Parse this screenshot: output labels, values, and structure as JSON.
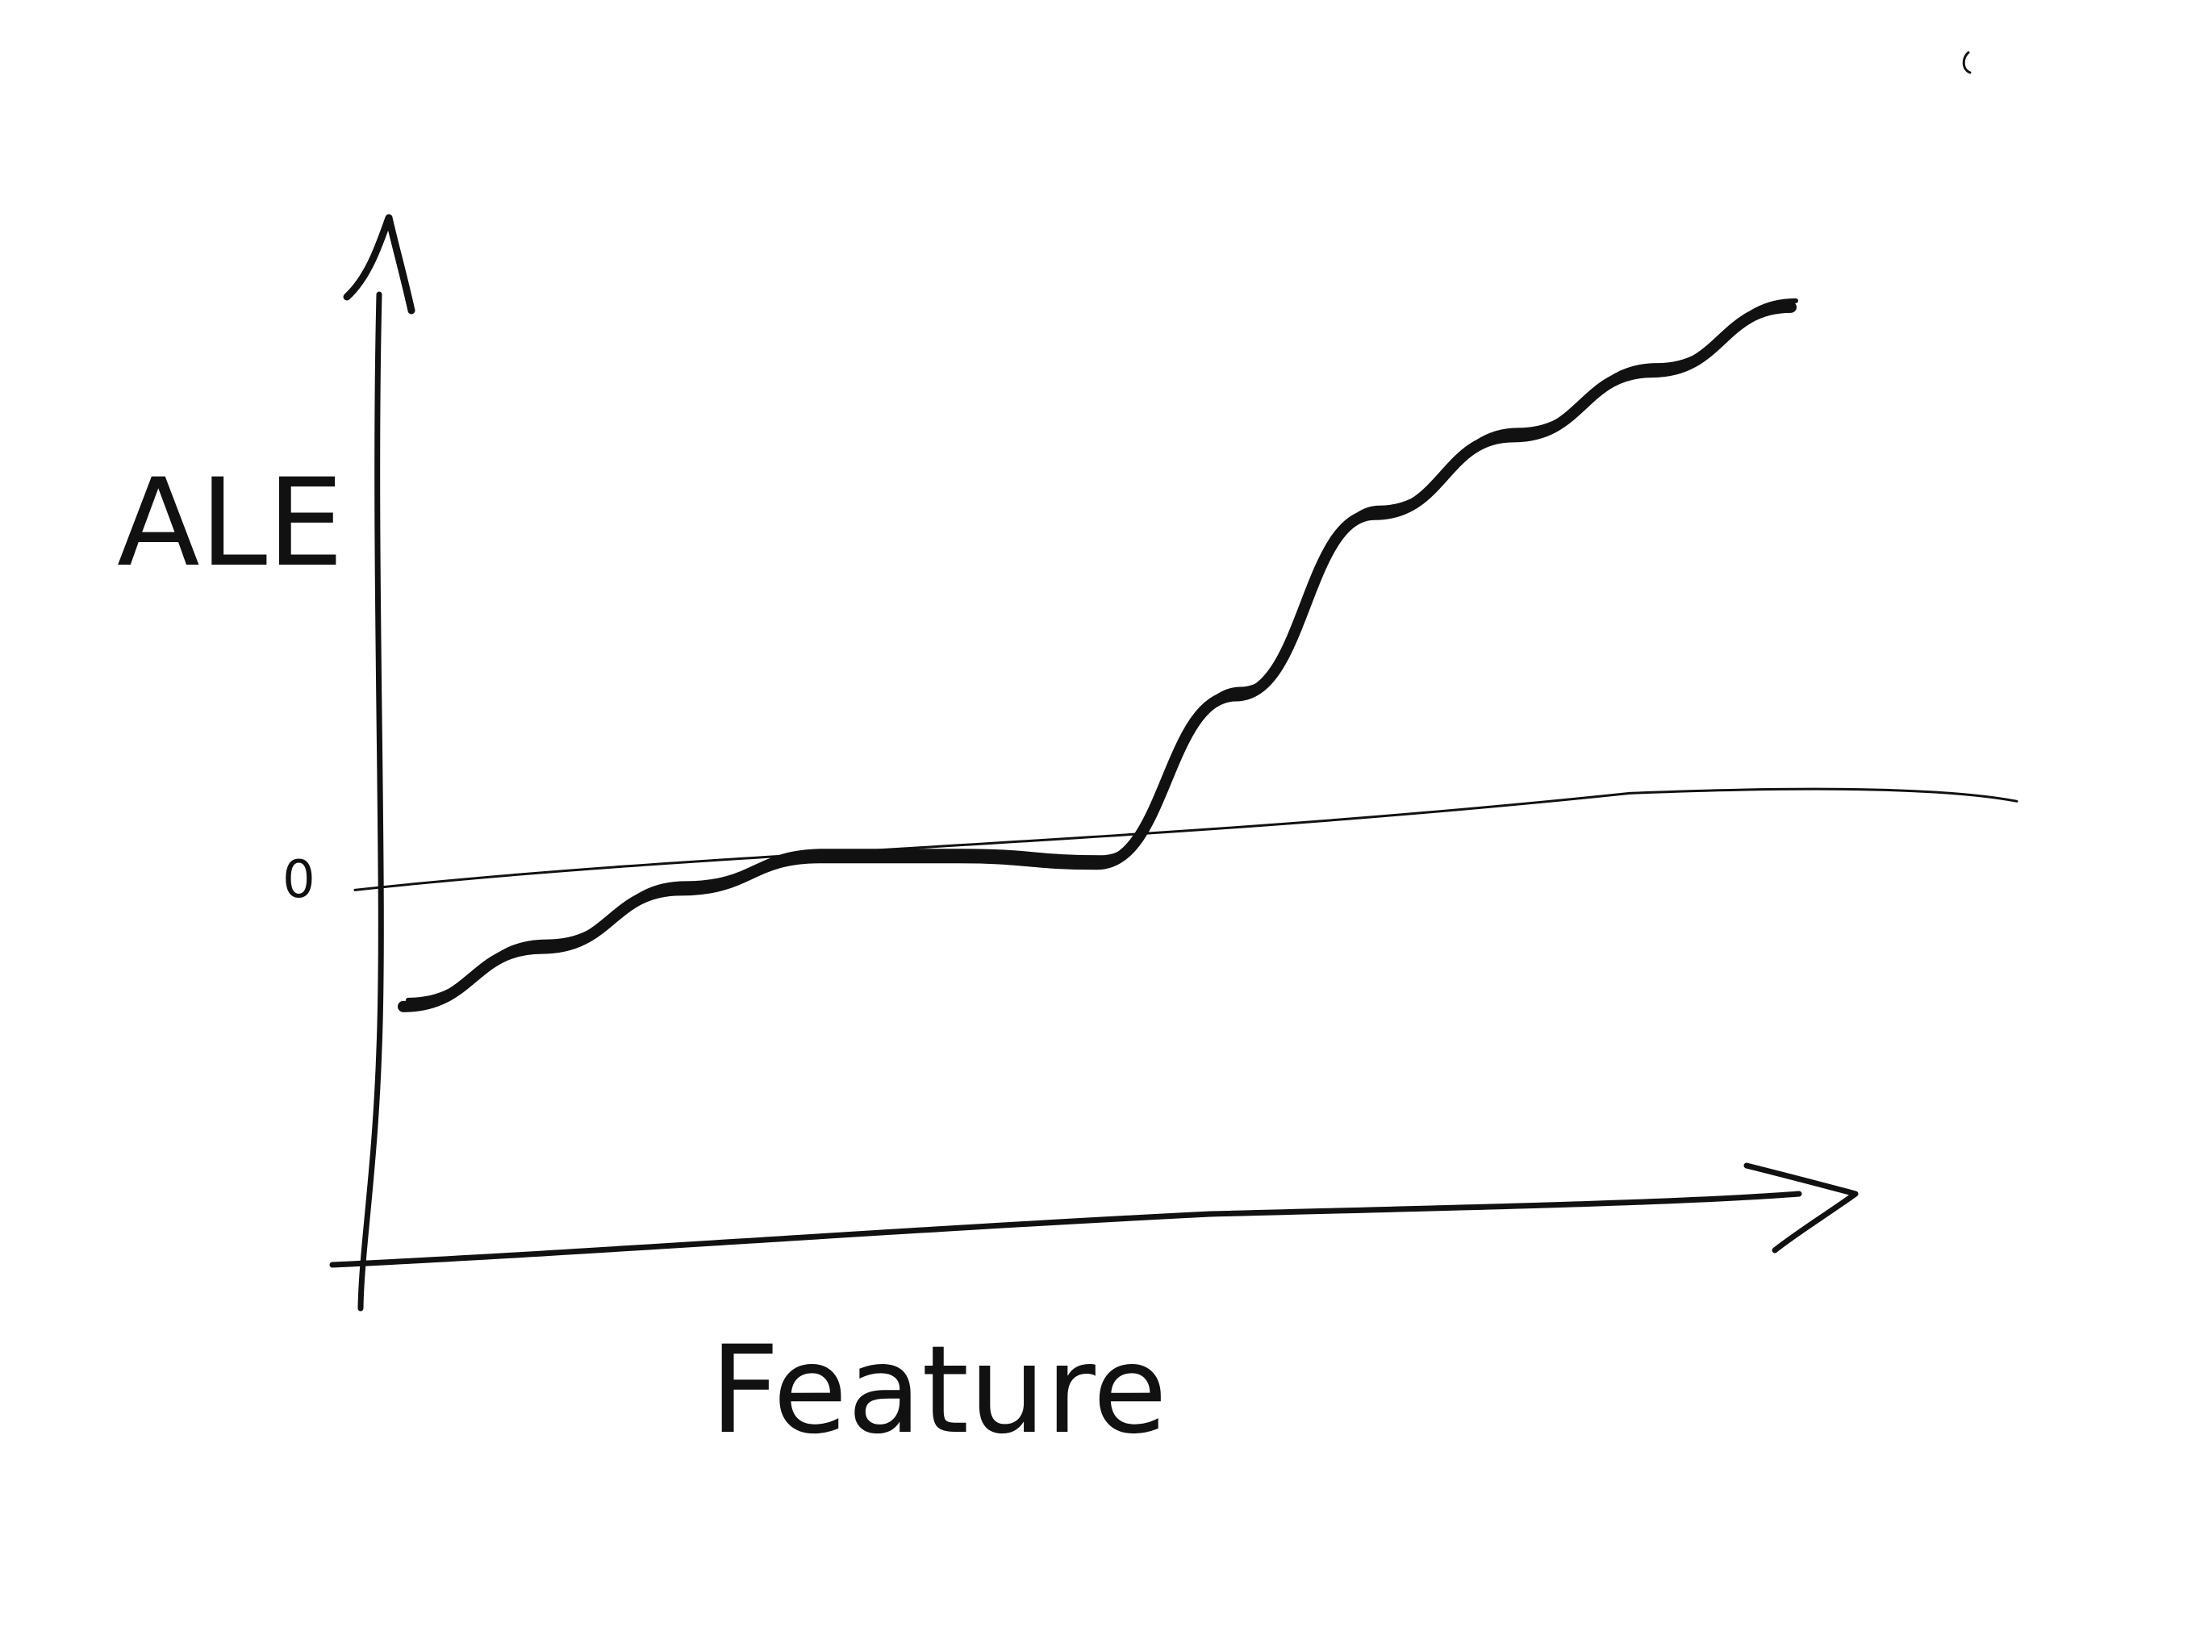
{
  "chart_data": {
    "type": "line",
    "title": "",
    "xlabel": "Feature",
    "ylabel": "ALE",
    "y_tick_labels": [
      "0"
    ],
    "x": [
      0,
      1,
      2,
      3,
      4,
      5,
      6,
      7,
      8,
      9,
      10
    ],
    "series": [
      {
        "name": "",
        "values": [
          -0.9,
          -0.45,
          0.0,
          0.25,
          0.25,
          0.2,
          1.5,
          2.9,
          3.5,
          4.0,
          4.5
        ]
      }
    ],
    "reference_line": {
      "label": "0",
      "value": 0
    },
    "ylim": [
      -3,
      6
    ],
    "grid": false,
    "legend": "none",
    "ink_color": "#111111"
  }
}
